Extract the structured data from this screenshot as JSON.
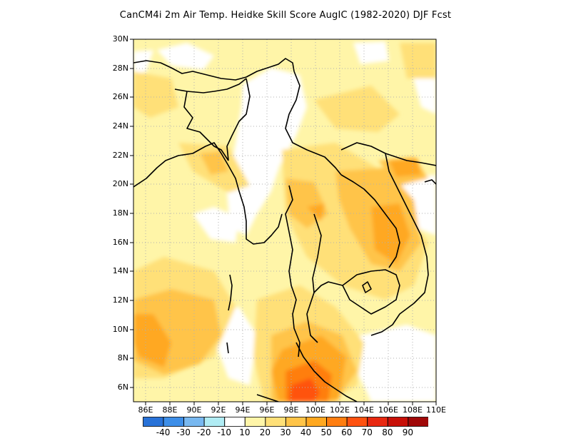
{
  "title": "CanCM4i  2m Air Temp. Heidke Skill Score AugIC (1982-2020) DJF Fcst",
  "map": {
    "lon_range": [
      85,
      110
    ],
    "lat_range": [
      5,
      30
    ],
    "lat_labels": [
      "30N",
      "28N",
      "26N",
      "24N",
      "22N",
      "20N",
      "18N",
      "16N",
      "14N",
      "12N",
      "10N",
      "8N",
      "6N"
    ],
    "lon_labels": [
      "86E",
      "88E",
      "90E",
      "92E",
      "94E",
      "96E",
      "98E",
      "100E",
      "102E",
      "104E",
      "106E",
      "108E",
      "110E"
    ]
  },
  "legend": {
    "colors": [
      "#2872d8",
      "#3d8ee8",
      "#78b8f0",
      "#b0ecf4",
      "#ffffff",
      "#fff5a8",
      "#ffe078",
      "#ffc448",
      "#ffa820",
      "#ff7e10",
      "#ff5210",
      "#e82810",
      "#c81008",
      "#a00808"
    ],
    "labels": [
      "-40",
      "-30",
      "-20",
      "-10",
      "10",
      "20",
      "30",
      "40",
      "50",
      "60",
      "70",
      "80",
      "90"
    ]
  }
}
